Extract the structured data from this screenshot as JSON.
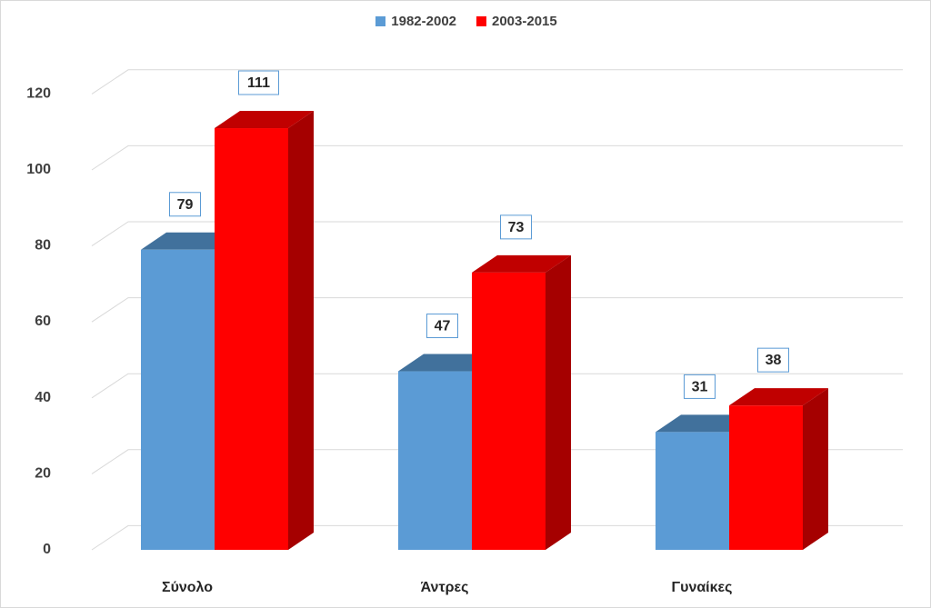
{
  "chart_data": {
    "type": "bar",
    "style": "3d-clustered-column",
    "title": "",
    "xlabel": "",
    "ylabel": "",
    "categories": [
      "Σύνολο",
      "Άντρες",
      "Γυναίκες"
    ],
    "series": [
      {
        "name": "1982-2002",
        "values": [
          79,
          47,
          31
        ],
        "color": "#5b9bd5",
        "top_color": "#41719c",
        "side_color": "#41719c"
      },
      {
        "name": "2003-2015",
        "values": [
          111,
          73,
          38
        ],
        "color": "#ff0000",
        "top_color": "#c00000",
        "side_color": "#a50000"
      }
    ],
    "ylim": [
      0,
      120
    ],
    "yticks": [
      0,
      20,
      40,
      60,
      80,
      100,
      120
    ],
    "grid": true,
    "legend_position": "top-center",
    "data_labels": true
  },
  "colors": {
    "gridline": "#d9d9d9",
    "label_border": "#5b9bd5"
  }
}
